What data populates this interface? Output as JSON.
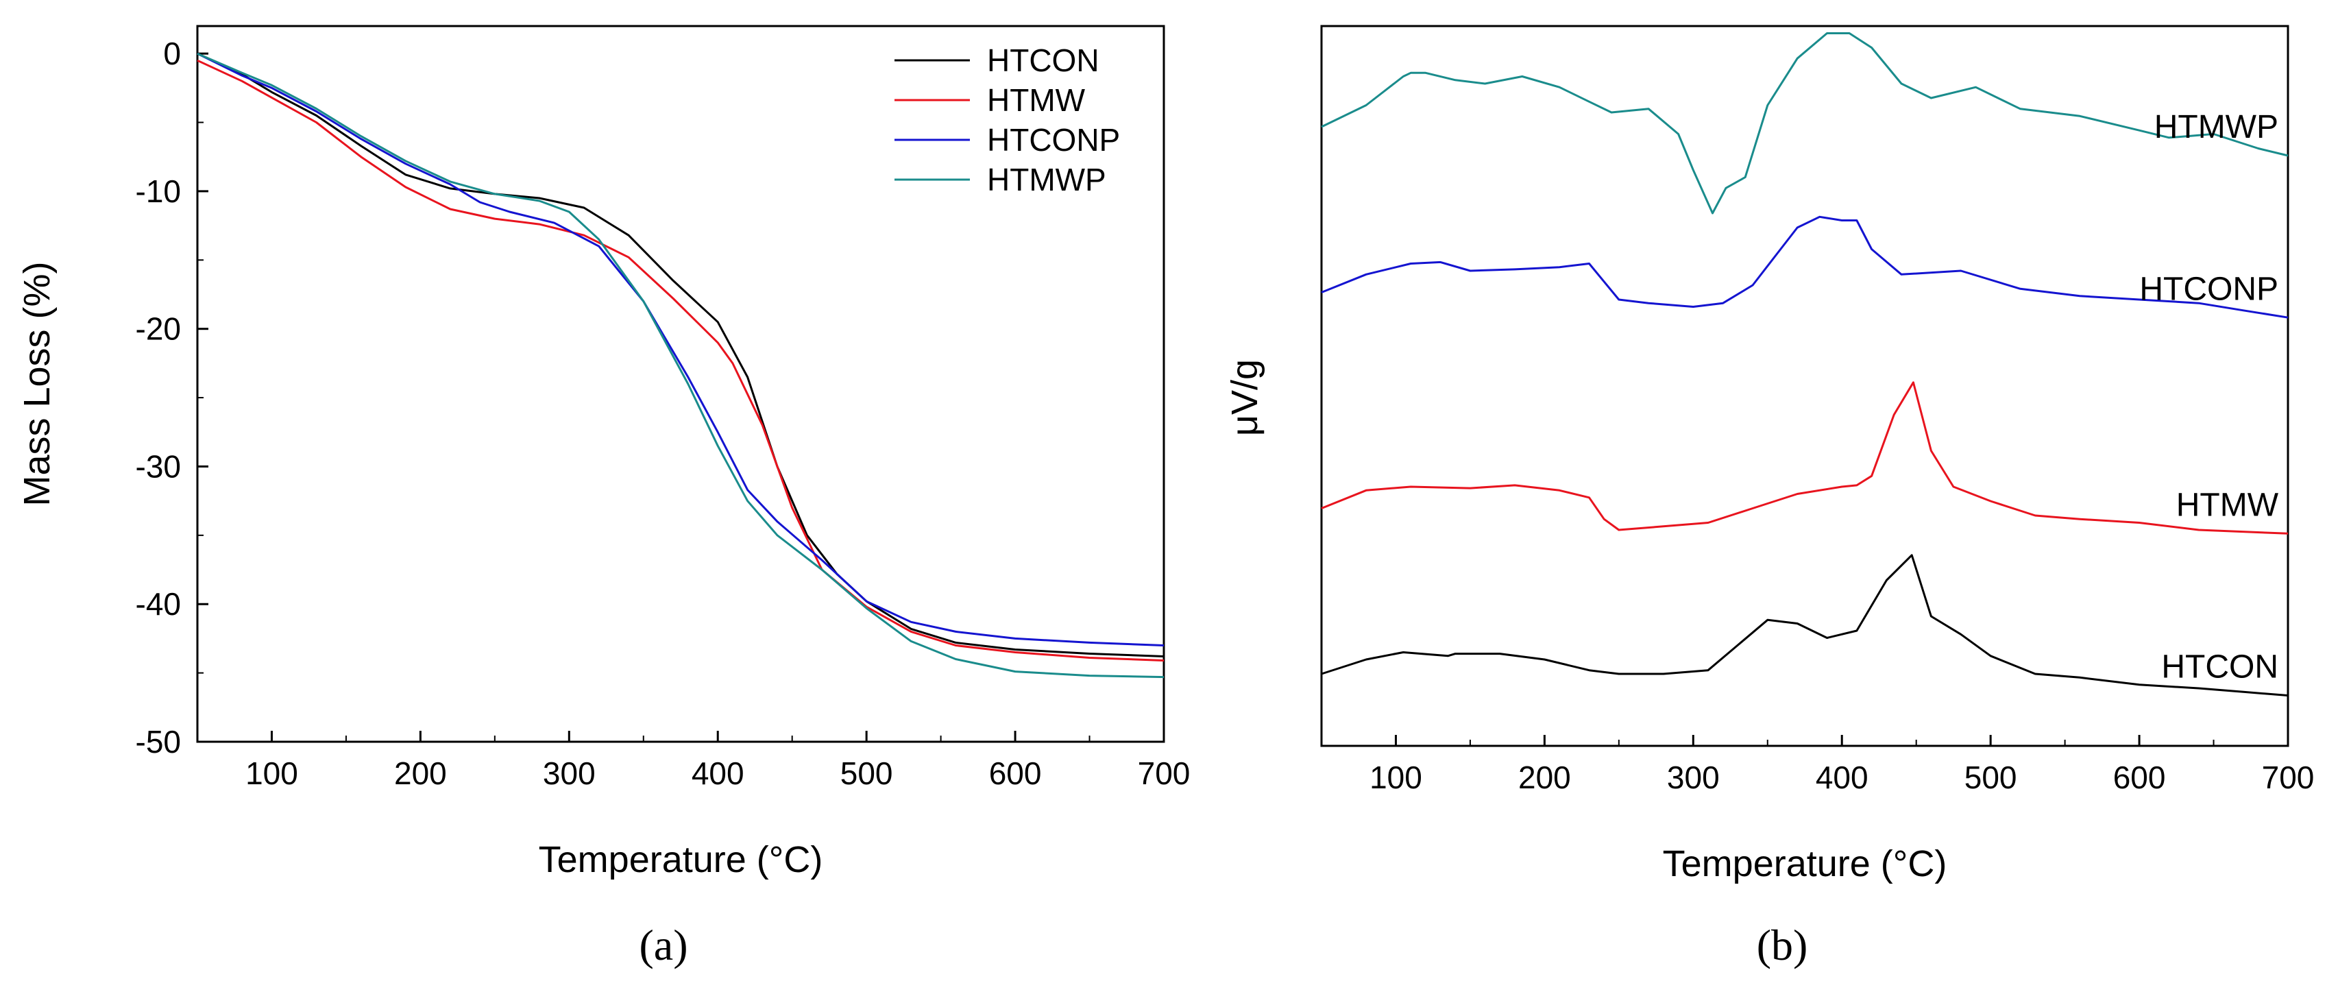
{
  "chart_data": [
    {
      "type": "line",
      "caption": "(a)",
      "title": "",
      "xlabel": "Temperature (°C)",
      "ylabel": "Mass Loss (%)",
      "xlim": [
        50,
        700
      ],
      "ylim": [
        -50,
        2
      ],
      "xticks": [
        100,
        200,
        300,
        400,
        500,
        600,
        700
      ],
      "yticks": [
        0,
        -10,
        -20,
        -30,
        -40,
        -50
      ],
      "grid": false,
      "legend_position": "top-right",
      "series": [
        {
          "name": "HTCON",
          "color": "#000000",
          "x": [
            50,
            80,
            100,
            130,
            160,
            190,
            220,
            250,
            280,
            310,
            340,
            370,
            400,
            420,
            440,
            460,
            480,
            500,
            530,
            560,
            600,
            650,
            700
          ],
          "y": [
            0,
            -1.5,
            -2.8,
            -4.5,
            -6.7,
            -8.8,
            -9.8,
            -10.2,
            -10.5,
            -11.2,
            -13.2,
            -16.5,
            -19.5,
            -23.5,
            -30,
            -35,
            -37.8,
            -39.8,
            -41.8,
            -42.8,
            -43.3,
            -43.6,
            -43.8
          ]
        },
        {
          "name": "HTMW",
          "color": "#e8141e",
          "x": [
            50,
            80,
            100,
            130,
            160,
            190,
            220,
            250,
            280,
            310,
            340,
            370,
            400,
            410,
            430,
            450,
            470,
            500,
            530,
            560,
            600,
            650,
            700
          ],
          "y": [
            -0.5,
            -2,
            -3.2,
            -5,
            -7.5,
            -9.7,
            -11.3,
            -12,
            -12.4,
            -13.2,
            -14.8,
            -17.8,
            -21,
            -22.5,
            -27,
            -33,
            -37.5,
            -40.2,
            -42,
            -43,
            -43.5,
            -43.9,
            -44.1
          ]
        },
        {
          "name": "HTCONP",
          "color": "#1414d0",
          "x": [
            50,
            80,
            100,
            130,
            160,
            190,
            220,
            240,
            260,
            290,
            320,
            350,
            380,
            400,
            420,
            440,
            470,
            500,
            530,
            560,
            600,
            650,
            700
          ],
          "y": [
            0,
            -1.6,
            -2.5,
            -4.2,
            -6.2,
            -8,
            -9.5,
            -10.8,
            -11.5,
            -12.3,
            -14,
            -18,
            -23.5,
            -27.5,
            -31.7,
            -34,
            -36.8,
            -39.8,
            -41.3,
            -42,
            -42.5,
            -42.8,
            -43
          ]
        },
        {
          "name": "HTMWP",
          "color": "#1a8c8c",
          "x": [
            50,
            80,
            100,
            130,
            160,
            190,
            220,
            250,
            280,
            300,
            320,
            350,
            380,
            400,
            420,
            440,
            470,
            500,
            530,
            560,
            600,
            650,
            700
          ],
          "y": [
            0,
            -1.4,
            -2.3,
            -4,
            -6,
            -7.8,
            -9.3,
            -10.2,
            -10.7,
            -11.5,
            -13.5,
            -18,
            -24,
            -28.5,
            -32.5,
            -35,
            -37.5,
            -40.3,
            -42.7,
            -44,
            -44.9,
            -45.2,
            -45.3
          ]
        }
      ]
    },
    {
      "type": "line",
      "caption": "(b)",
      "title": "",
      "xlabel": "Temperature (°C)",
      "ylabel": "μV/g",
      "xlim": [
        50,
        700
      ],
      "ylim": [
        0,
        10
      ],
      "xticks": [
        100,
        200,
        300,
        400,
        500,
        600,
        700
      ],
      "yticks": [],
      "grid": false,
      "series": [
        {
          "name": "HTMWP",
          "color": "#1a8c8c",
          "x": [
            50,
            80,
            105,
            110,
            120,
            140,
            160,
            185,
            210,
            230,
            245,
            270,
            290,
            300,
            313,
            322,
            335,
            350,
            370,
            390,
            405,
            420,
            440,
            460,
            490,
            520,
            560,
            600,
            620,
            650,
            680,
            700
          ],
          "y": [
            8.6,
            8.9,
            9.3,
            9.35,
            9.35,
            9.25,
            9.2,
            9.3,
            9.15,
            8.95,
            8.8,
            8.85,
            8.5,
            8.0,
            7.4,
            7.75,
            7.9,
            8.9,
            9.55,
            9.9,
            9.9,
            9.7,
            9.2,
            9.0,
            9.15,
            8.85,
            8.75,
            8.55,
            8.45,
            8.5,
            8.3,
            8.2
          ]
        },
        {
          "name": "HTCONP",
          "color": "#1414d0",
          "x": [
            50,
            80,
            110,
            130,
            150,
            180,
            210,
            230,
            240,
            250,
            270,
            300,
            320,
            340,
            355,
            370,
            385,
            400,
            410,
            420,
            440,
            480,
            520,
            560,
            600,
            640,
            670,
            700
          ],
          "y": [
            6.3,
            6.55,
            6.7,
            6.72,
            6.6,
            6.62,
            6.65,
            6.7,
            6.45,
            6.2,
            6.15,
            6.1,
            6.15,
            6.4,
            6.8,
            7.2,
            7.35,
            7.3,
            7.3,
            6.9,
            6.55,
            6.6,
            6.35,
            6.25,
            6.2,
            6.15,
            6.05,
            5.95
          ]
        },
        {
          "name": "HTMW",
          "color": "#e8141e",
          "x": [
            50,
            80,
            110,
            150,
            180,
            210,
            230,
            240,
            250,
            280,
            310,
            340,
            370,
            400,
            410,
            420,
            435,
            448,
            460,
            475,
            500,
            530,
            560,
            600,
            640,
            700
          ],
          "y": [
            3.3,
            3.55,
            3.6,
            3.58,
            3.62,
            3.55,
            3.45,
            3.15,
            3.0,
            3.05,
            3.1,
            3.3,
            3.5,
            3.6,
            3.62,
            3.75,
            4.6,
            5.05,
            4.1,
            3.6,
            3.4,
            3.2,
            3.15,
            3.1,
            3.0,
            2.95
          ]
        },
        {
          "name": "HTCON",
          "color": "#000000",
          "x": [
            50,
            80,
            105,
            135,
            140,
            170,
            200,
            230,
            250,
            280,
            310,
            330,
            350,
            370,
            390,
            410,
            430,
            447,
            460,
            480,
            500,
            530,
            560,
            600,
            640,
            670,
            700
          ],
          "y": [
            1.0,
            1.2,
            1.3,
            1.25,
            1.28,
            1.28,
            1.2,
            1.05,
            1.0,
            1.0,
            1.05,
            1.4,
            1.75,
            1.7,
            1.5,
            1.6,
            2.3,
            2.65,
            1.8,
            1.55,
            1.25,
            1.0,
            0.95,
            0.85,
            0.8,
            0.75,
            0.7
          ]
        }
      ]
    }
  ]
}
